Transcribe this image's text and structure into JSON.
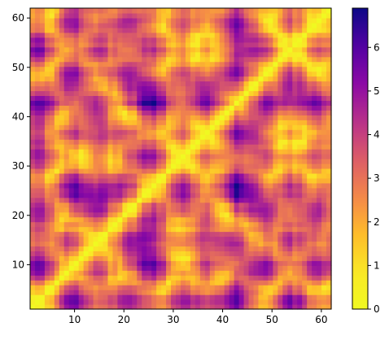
{
  "chart_data": {
    "type": "heatmap",
    "title": "",
    "xlabel": "",
    "ylabel": "",
    "description": "Symmetric pairwise-distance style matrix; zero on the main diagonal, values roughly 0–6.9, plasma_r colormap",
    "xlim": [
      1,
      62
    ],
    "ylim": [
      1,
      62
    ],
    "x_ticks": [
      10,
      20,
      30,
      40,
      50,
      60
    ],
    "y_ticks": [
      10,
      20,
      30,
      40,
      50,
      60
    ],
    "colorbar": {
      "colormap": "plasma_r",
      "vmin": 0,
      "vmax": 6.9,
      "ticks": [
        0,
        1,
        2,
        3,
        4,
        5,
        6
      ]
    },
    "grid": false,
    "legend": "none",
    "n": 62
  }
}
